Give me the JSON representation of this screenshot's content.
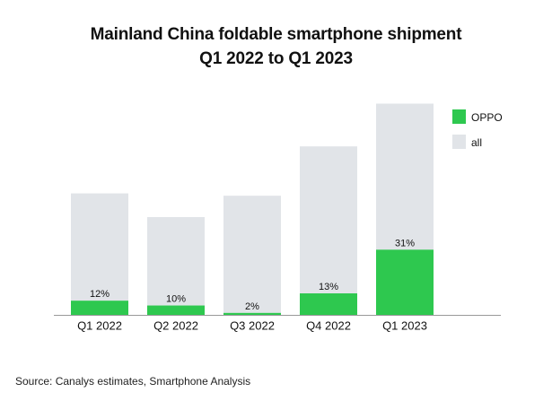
{
  "chart_data": {
    "type": "bar",
    "stacked": "overlay",
    "title": "Mainland China foldable smartphone shipment",
    "subtitle": "Q1 2022 to Q1 2023",
    "categories": [
      "Q1 2022",
      "Q2 2022",
      "Q3 2022",
      "Q4 2022",
      "Q1 2023"
    ],
    "series": [
      {
        "name": "all",
        "values": [
          57.6,
          46.4,
          56.5,
          79.8,
          100
        ],
        "color": "#e1e4e8"
      },
      {
        "name": "OPPO",
        "share_labels": [
          "12%",
          "10%",
          "2%",
          "13%",
          "31%"
        ],
        "share": [
          12,
          10,
          2,
          13,
          31
        ],
        "color": "#2ec84f"
      }
    ],
    "xlabel": "",
    "ylabel": "",
    "ylim": [
      0,
      100
    ],
    "grid": false,
    "legend": "top-right",
    "source": "Source: Canalys estimates, Smartphone Analysis"
  }
}
